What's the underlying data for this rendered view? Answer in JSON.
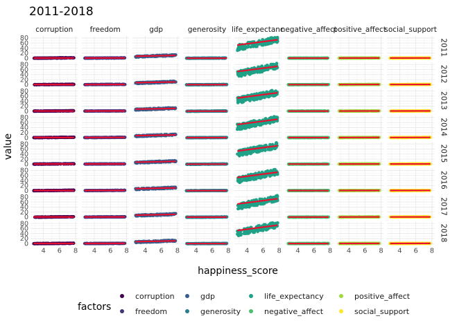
{
  "chart_data": {
    "type": "scatter",
    "title": "2011-2018",
    "xlabel": "happiness_score",
    "ylabel": "value",
    "xlim": [
      2.4,
      8.3
    ],
    "ylim": [
      -4,
      88
    ],
    "x_ticks": [
      4,
      6,
      8
    ],
    "y_ticks": [
      0,
      20,
      40,
      60,
      80
    ],
    "grid": true,
    "legend_title": "factors",
    "legend_position": "bottom",
    "facet_columns": [
      "corruption",
      "freedom",
      "gdp",
      "generosity",
      "life_expectancy",
      "negative_affect",
      "positive_affect",
      "social_support"
    ],
    "facet_column_labels": [
      "corruption",
      "freedom",
      "gdp",
      "generosity",
      "life_expectanc",
      "negative_affect",
      "positive_affect",
      "social_support"
    ],
    "facet_rows": [
      "2011",
      "2012",
      "2013",
      "2014",
      "2015",
      "2016",
      "2017",
      "2018"
    ],
    "x_range_points": [
      2.8,
      7.8
    ],
    "series": [
      {
        "name": "corruption",
        "color": "#440154",
        "y_range": [
          0,
          1.5
        ],
        "fit": [
          0.8,
          0.5
        ]
      },
      {
        "name": "freedom",
        "color": "#46337e",
        "y_range": [
          0.3,
          1.2
        ],
        "fit": [
          0.6,
          0.9
        ]
      },
      {
        "name": "gdp",
        "color": "#365c8d",
        "y_range": [
          6,
          12
        ],
        "fit": [
          8,
          11
        ]
      },
      {
        "name": "generosity",
        "color": "#277f8e",
        "y_range": [
          -0.3,
          0.6
        ],
        "fit": [
          0.1,
          0.1
        ]
      },
      {
        "name": "life_expectancy",
        "color": "#1fa187",
        "y_range": [
          42,
          75
        ],
        "fit": [
          52,
          73
        ]
      },
      {
        "name": "negative_affect",
        "color": "#4ac16d",
        "y_range": [
          0.1,
          0.5
        ],
        "fit": [
          0.35,
          0.25
        ]
      },
      {
        "name": "positive_affect",
        "color": "#9fda3a",
        "y_range": [
          0.4,
          0.9
        ],
        "fit": [
          0.55,
          0.8
        ]
      },
      {
        "name": "social_support",
        "color": "#fde725",
        "y_range": [
          0.4,
          1
        ],
        "fit": [
          0.65,
          0.9
        ]
      }
    ],
    "fit_line_color": "#e8102e",
    "legend_order": [
      "corruption",
      "freedom",
      "gdp",
      "generosity",
      "life_expectancy",
      "negative_affect",
      "positive_affect",
      "social_support"
    ]
  }
}
